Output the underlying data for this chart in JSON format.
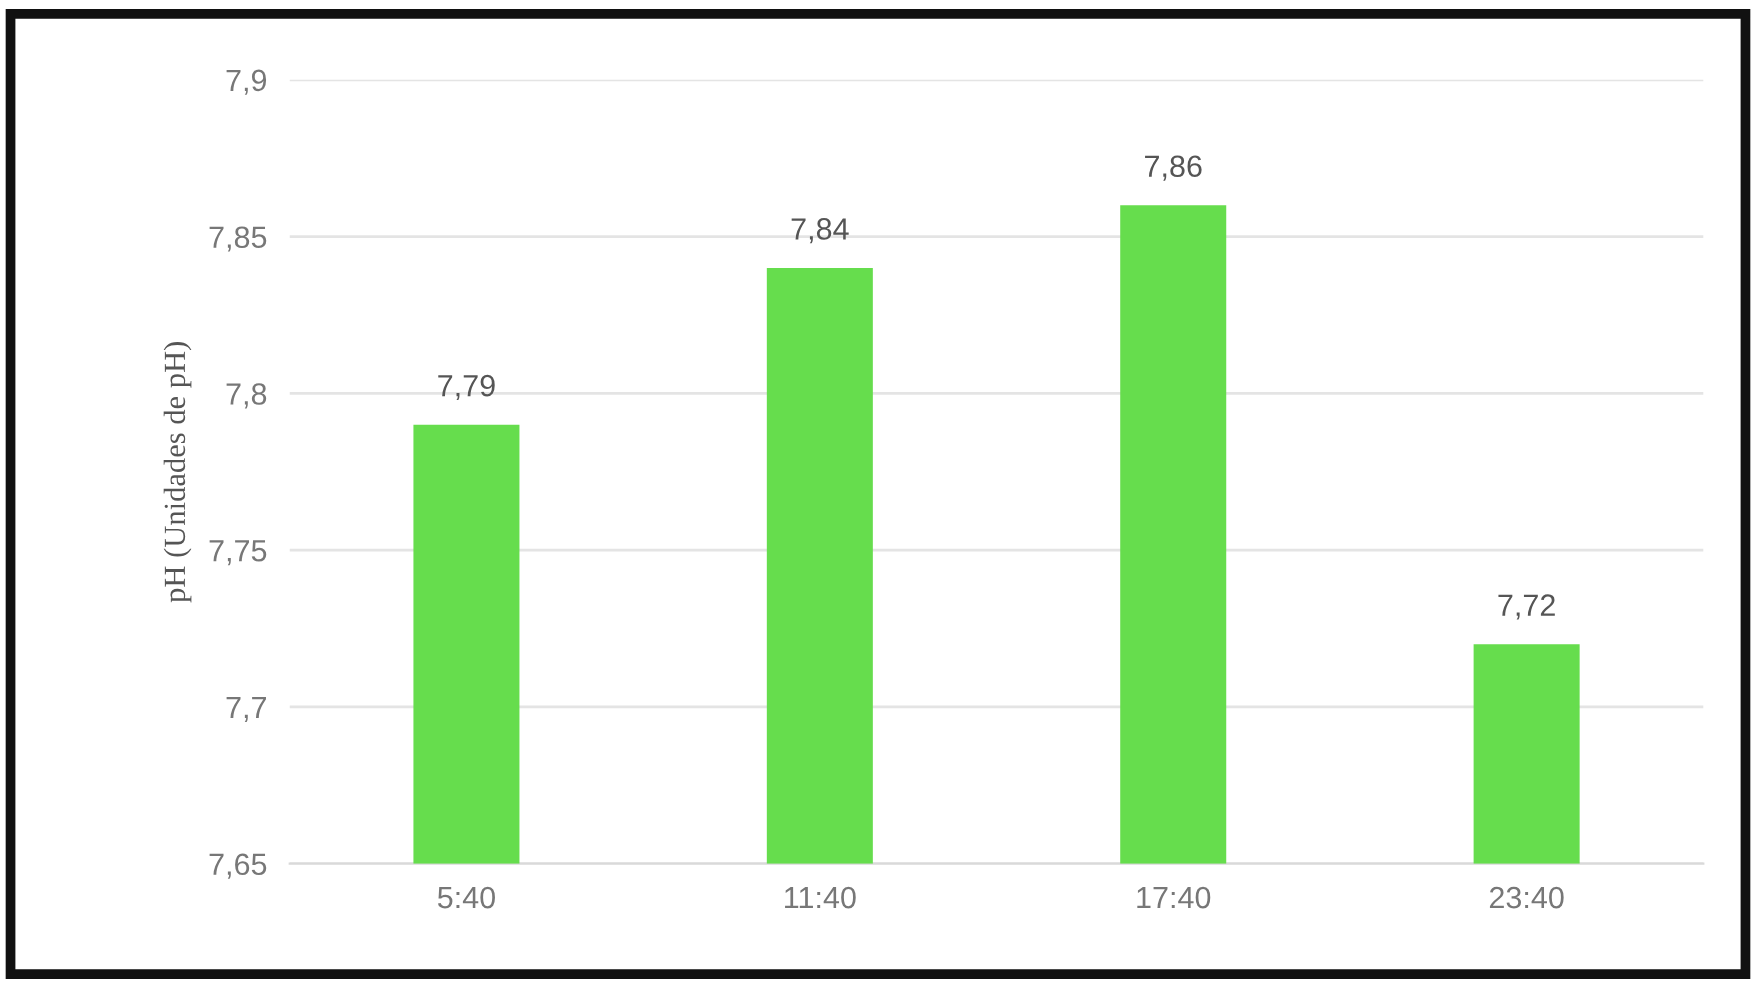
{
  "chart_data": {
    "type": "bar",
    "ylabel": "pH (Unidades de pH)",
    "categories": [
      "5:40",
      "11:40",
      "17:40",
      "23:40"
    ],
    "values": [
      7.79,
      7.84,
      7.86,
      7.72
    ],
    "color": "#66dd4d",
    "value_labels": [
      "7,79",
      "7,84",
      "7,86",
      "7,72"
    ],
    "ylim": [
      7.65,
      7.9
    ],
    "yticks": [
      {
        "value": 7.65,
        "label": "7,65"
      },
      {
        "value": 7.7,
        "label": "7,7"
      },
      {
        "value": 7.75,
        "label": "7,75"
      },
      {
        "value": 7.8,
        "label": "7,8"
      },
      {
        "value": 7.85,
        "label": "7,85"
      },
      {
        "value": 7.9,
        "label": "7,9"
      }
    ],
    "grid": "y",
    "legend": false
  }
}
